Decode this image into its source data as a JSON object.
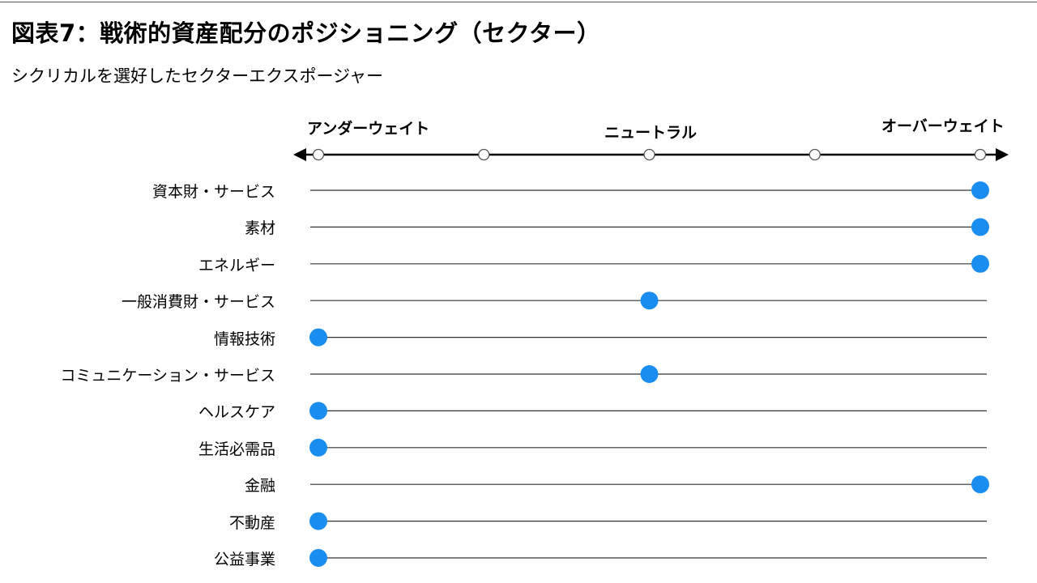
{
  "header": {
    "title": "図表7：戦術的資産配分のポジショニング（セクター）",
    "subtitle": "シクリカルを選好したセクターエクスポージャー"
  },
  "chart_data": {
    "type": "scatter",
    "scale_labels": {
      "left": "アンダーウェイト",
      "center": "ニュートラル",
      "right": "オーバーウェイト"
    },
    "scale_positions": [
      -2,
      -1,
      0,
      1,
      2
    ],
    "xlim": [
      -2,
      2
    ],
    "categories": [
      "資本財・サービス",
      "素材",
      "エネルギー",
      "一般消費財・サービス",
      "情報技術",
      "コミュニケーション・サービス",
      "ヘルスケア",
      "生活必需品",
      "金融",
      "不動産",
      "公益事業"
    ],
    "values": [
      2,
      2,
      2,
      0,
      -2,
      0,
      -2,
      -2,
      2,
      -2,
      -2
    ],
    "colors": {
      "marker": "#1a8ef0",
      "axis": "#000000",
      "row_line": "#333333"
    }
  }
}
